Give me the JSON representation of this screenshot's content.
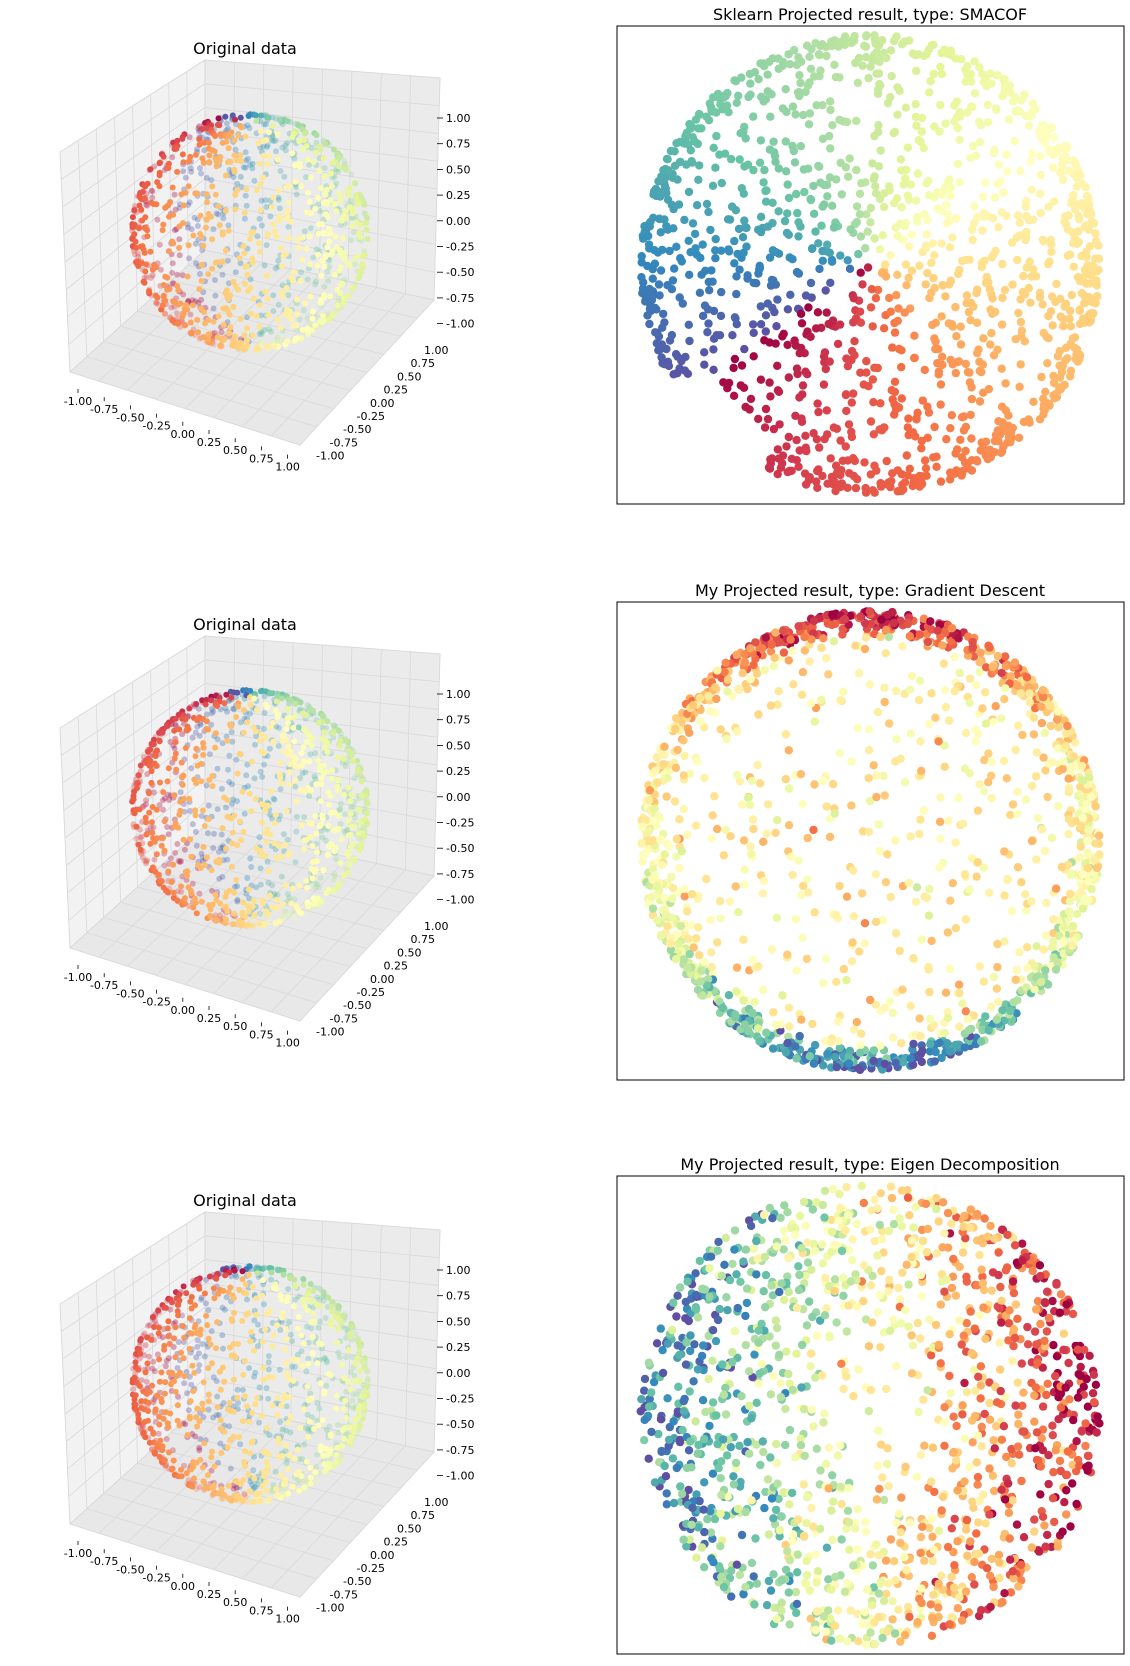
{
  "figure": {
    "original_title": "Original data",
    "proj_titles": [
      "Sklearn Projected result, type: SMACOF",
      "My Projected result, type: Gradient Descent",
      "My Projected result, type: Eigen Decomposition"
    ]
  },
  "colors": {
    "spectral": [
      "#9e0142",
      "#d53e4f",
      "#f46d43",
      "#fdae61",
      "#fee08b",
      "#ffffbf",
      "#e6f598",
      "#abdda4",
      "#66c2a5",
      "#3288bd",
      "#5e4fa2"
    ],
    "panel_bg": "#f2f2f2",
    "grid": "#d9d9d9",
    "frame": "#000000"
  },
  "chart_data": [
    {
      "type": "scatter",
      "panel": "3d",
      "title": "Original data",
      "xlim": [
        -1,
        1
      ],
      "ylim": [
        -1,
        1
      ],
      "zlim": [
        -1,
        1
      ],
      "x_ticks": [
        "-1.00",
        "-0.75",
        "-0.50",
        "-0.25",
        "0.00",
        "0.25",
        "0.50",
        "0.75",
        "1.00"
      ],
      "y_ticks": [
        "-1.00",
        "-0.75",
        "-0.50",
        "-0.25",
        "0.00",
        "0.25",
        "0.50",
        "0.75",
        "1.00"
      ],
      "z_ticks": [
        "-1.00",
        "-0.75",
        "-0.50",
        "-0.25",
        "0.00",
        "0.25",
        "0.50",
        "0.75",
        "1.00"
      ],
      "data": "points uniformly on unit sphere, colored by angle (Spectral colormap)"
    },
    {
      "type": "scatter",
      "panel": "2d",
      "title": "Sklearn Projected result, type: SMACOF",
      "xlim": [
        -1,
        1
      ],
      "ylim": [
        -1,
        1
      ],
      "ticks": "none",
      "data": "disc of points; color sweeps around the rim with a gap at the lower-left"
    },
    {
      "type": "scatter",
      "panel": "3d",
      "title": "Original data",
      "xlim": [
        -1,
        1
      ],
      "ylim": [
        -1,
        1
      ],
      "zlim": [
        -1,
        1
      ],
      "x_ticks": [
        "-1.00",
        "-0.75",
        "-0.50",
        "-0.25",
        "0.00",
        "0.25",
        "0.50",
        "0.75",
        "1.00"
      ],
      "y_ticks": [
        "-1.00",
        "-0.75",
        "-0.50",
        "-0.25",
        "0.00",
        "0.25",
        "0.50",
        "0.75",
        "1.00"
      ],
      "z_ticks": [
        "-1.00",
        "-0.75",
        "-0.50",
        "-0.25",
        "0.00",
        "0.25",
        "0.50",
        "0.75",
        "1.00"
      ]
    },
    {
      "type": "scatter",
      "panel": "2d",
      "title": "My Projected result, type: Gradient Descent",
      "xlim": [
        -1,
        1
      ],
      "ylim": [
        -1,
        1
      ],
      "ticks": "none",
      "data": "ring-heavy disc; warm colors on upper rim, cool colors on lower rim"
    },
    {
      "type": "scatter",
      "panel": "3d",
      "title": "Original data",
      "xlim": [
        -1,
        1
      ],
      "ylim": [
        -1,
        1
      ],
      "zlim": [
        -1,
        1
      ],
      "x_ticks": [
        "-1.00",
        "-0.75",
        "-0.50",
        "-0.25",
        "0.00",
        "0.25",
        "0.50",
        "0.75",
        "1.00"
      ],
      "y_ticks": [
        "-1.00",
        "-0.75",
        "-0.50",
        "-0.25",
        "0.00",
        "0.25",
        "0.50",
        "0.75",
        "1.00"
      ],
      "z_ticks": [
        "-1.00",
        "-0.75",
        "-0.50",
        "-0.25",
        "0.00",
        "0.25",
        "0.50",
        "0.75",
        "1.00"
      ]
    },
    {
      "type": "scatter",
      "panel": "2d",
      "title": "My Projected result, type: Eigen Decomposition",
      "xlim": [
        -1,
        1
      ],
      "ylim": [
        -1,
        1
      ],
      "ticks": "none",
      "data": "full disc; cool colors on left half, warm colors on right half"
    }
  ]
}
